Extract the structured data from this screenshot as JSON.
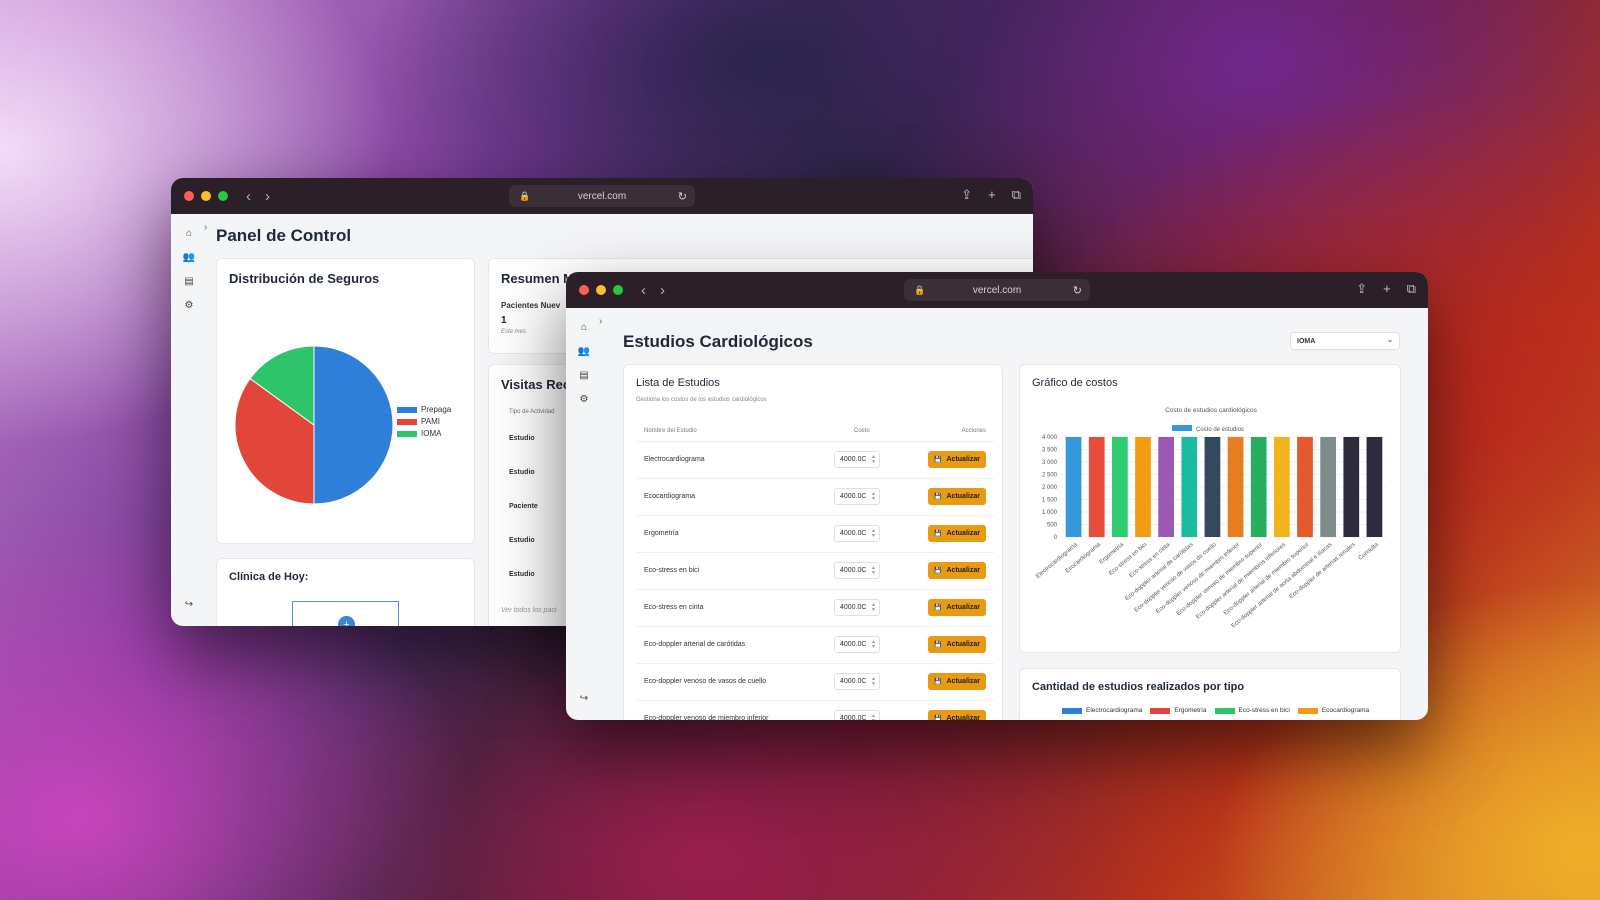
{
  "window1": {
    "url": "vercel.com",
    "page_title": "Panel de Control",
    "distribucion": {
      "title": "Distribución de Seguros",
      "chart_data": {
        "type": "pie",
        "title": "Distribución de Seguros",
        "labels": [
          "Prepaga",
          "PAMI",
          "IOMA"
        ],
        "values": [
          50,
          35,
          15
        ],
        "colors": [
          "#2d7fd8",
          "#e2463a",
          "#2ec56a"
        ]
      }
    },
    "resumen": {
      "title": "Resumen Me",
      "label": "Pacientes Nuev",
      "value": "1",
      "sub": "Este mes"
    },
    "visitas": {
      "title": "Visitas Recie",
      "column": "Tipo de Actividad",
      "rows": [
        "Estudio",
        "Estudio",
        "Paciente",
        "Estudio",
        "Estudio"
      ],
      "footer": "Ver todos los paci"
    },
    "clinica": {
      "title": "Clínica de Hoy:"
    }
  },
  "window2": {
    "url": "vercel.com",
    "page_title": "Estudios Cardiológicos",
    "select_value": "IOMA",
    "lista": {
      "title": "Lista de Estudios",
      "subtitle": "Gestiona los costos de los estudios cardiológicos",
      "headers": [
        "Nombre del Estudio",
        "Costo",
        "Acciones"
      ],
      "button_label": "Actualizar",
      "rows": [
        {
          "name": "Electrocardiograma",
          "cost": "4000.0C"
        },
        {
          "name": "Ecocardiograma",
          "cost": "4000.0C"
        },
        {
          "name": "Ergometría",
          "cost": "4000.0C"
        },
        {
          "name": "Eco-stress en bici",
          "cost": "4000.0C"
        },
        {
          "name": "Eco-stress en cinta",
          "cost": "4000.0C"
        },
        {
          "name": "Eco-doppler arterial de carótidas",
          "cost": "4000.0C"
        },
        {
          "name": "Eco-doppler venoso de vasos de cuello",
          "cost": "4000.0C"
        },
        {
          "name": "Eco-doppler venoso de miembro inferior",
          "cost": "4000.0C"
        }
      ]
    },
    "grafico": {
      "title": "Gráfico de costos",
      "chart_data": {
        "type": "bar",
        "title": "Costo de estudios cardiológicos",
        "legend": "Costo de estudios",
        "categories": [
          "Electrocardiograma",
          "Ecocardiograma",
          "Ergometría",
          "Eco-stress en bici",
          "Eco-stress en cinta",
          "Eco-doppler arterial de carótidas",
          "Eco-doppler venoso de vasos de cuello",
          "Eco-doppler venoso de miembro inferior",
          "Eco-doppler venoso de miembro superior",
          "Eco-doppler arterial de miembros inferiores",
          "Eco-doppler arterial de miembro superior",
          "Eco-doppler arterial de aorta abdominal e ilíacas",
          "Eco-doppler de arterias renales",
          "Consulta"
        ],
        "values": [
          4000,
          4000,
          4000,
          4000,
          4000,
          4000,
          4000,
          4000,
          4000,
          4000,
          4000,
          4000,
          4000,
          4000
        ],
        "colors": [
          "#3498db",
          "#e74c3c",
          "#2ecc71",
          "#f39c12",
          "#9b59b6",
          "#1abc9c",
          "#34495e",
          "#e67e22",
          "#27ae60",
          "#f1b51c",
          "#e5592c",
          "#7f8c8d",
          "#2c2c3e",
          "#2c2c3e"
        ],
        "yticks": [
          "4 000",
          "3 500",
          "3 000",
          "2 500",
          "2 000",
          "1 500",
          "1 000",
          "500",
          "0"
        ],
        "ylim": [
          0,
          4000
        ]
      }
    },
    "cantidad": {
      "title": "Cantidad de estudios realizados por tipo",
      "legend": [
        {
          "name": "Electrocardiograma",
          "color": "#2d7fd8"
        },
        {
          "name": "Ergometría",
          "color": "#e2463a"
        },
        {
          "name": "Eco-stress en bici",
          "color": "#2ec56a"
        },
        {
          "name": "Ecocardiograma",
          "color": "#f39c12"
        }
      ]
    }
  }
}
